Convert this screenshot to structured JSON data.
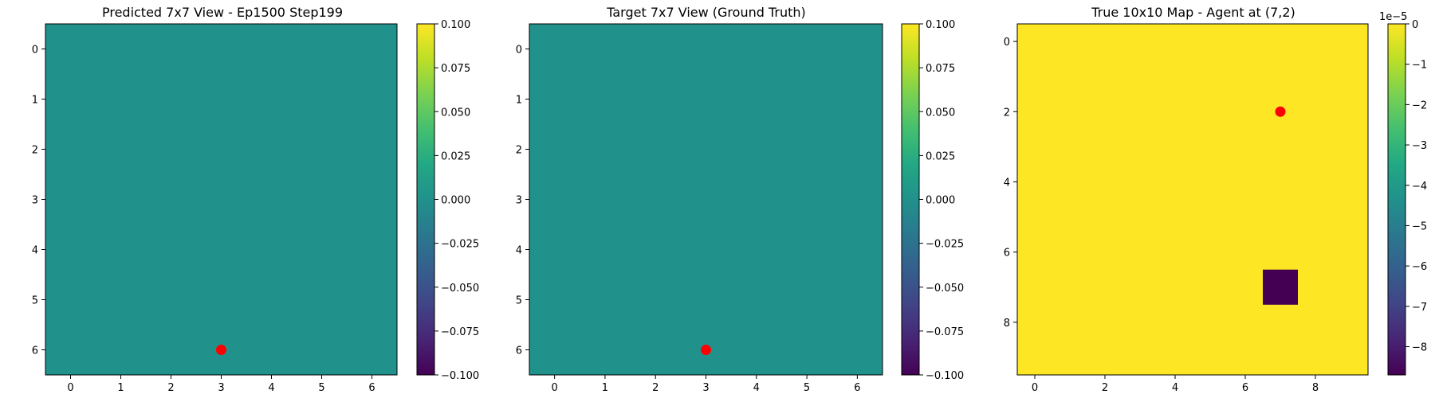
{
  "chart_data": [
    {
      "type": "heatmap",
      "title": "Predicted 7x7 View - Ep1500 Step199",
      "rows": 7,
      "cols": 7,
      "cell_value": 0.0,
      "vmin": -0.1,
      "vmax": 0.1,
      "x_ticks": [
        "0",
        "1",
        "2",
        "3",
        "4",
        "5",
        "6"
      ],
      "y_ticks": [
        "0",
        "1",
        "2",
        "3",
        "4",
        "5",
        "6"
      ],
      "colorbar_ticks": [
        "0.100",
        "0.075",
        "0.050",
        "0.025",
        "0.000",
        "−0.025",
        "−0.050",
        "−0.075",
        "−0.100"
      ],
      "agent_marker": {
        "x": 3,
        "y": 6,
        "color": "#ff0000"
      }
    },
    {
      "type": "heatmap",
      "title": "Target 7x7 View (Ground Truth)",
      "rows": 7,
      "cols": 7,
      "cell_value": 0.0,
      "vmin": -0.1,
      "vmax": 0.1,
      "x_ticks": [
        "0",
        "1",
        "2",
        "3",
        "4",
        "5",
        "6"
      ],
      "y_ticks": [
        "0",
        "1",
        "2",
        "3",
        "4",
        "5",
        "6"
      ],
      "colorbar_ticks": [
        "0.100",
        "0.075",
        "0.050",
        "0.025",
        "0.000",
        "−0.025",
        "−0.050",
        "−0.075",
        "−0.100"
      ],
      "agent_marker": {
        "x": 3,
        "y": 6,
        "color": "#ff0000"
      }
    },
    {
      "type": "heatmap",
      "title": "True 10x10 Map - Agent at (7,2)",
      "rows": 10,
      "cols": 10,
      "background_value": 0,
      "special_cells": [
        {
          "x": 7,
          "y": 7,
          "value": -8.7
        }
      ],
      "vmin": -8.7,
      "vmax": 0,
      "x_ticks": [
        "0",
        "2",
        "4",
        "6",
        "8"
      ],
      "y_ticks": [
        "0",
        "2",
        "4",
        "6",
        "8"
      ],
      "colorbar_ticks": [
        "0",
        "−1",
        "−2",
        "−3",
        "−4",
        "−5",
        "−6",
        "−7",
        "−8"
      ],
      "colorbar_scale_label": "1e−5",
      "agent_marker": {
        "x": 7,
        "y": 2,
        "color": "#ff0000"
      }
    }
  ],
  "colors": {
    "viridis_low": "#440154",
    "viridis_mid": "#21918c",
    "viridis_high": "#fde725",
    "marker": "#ff0000"
  }
}
